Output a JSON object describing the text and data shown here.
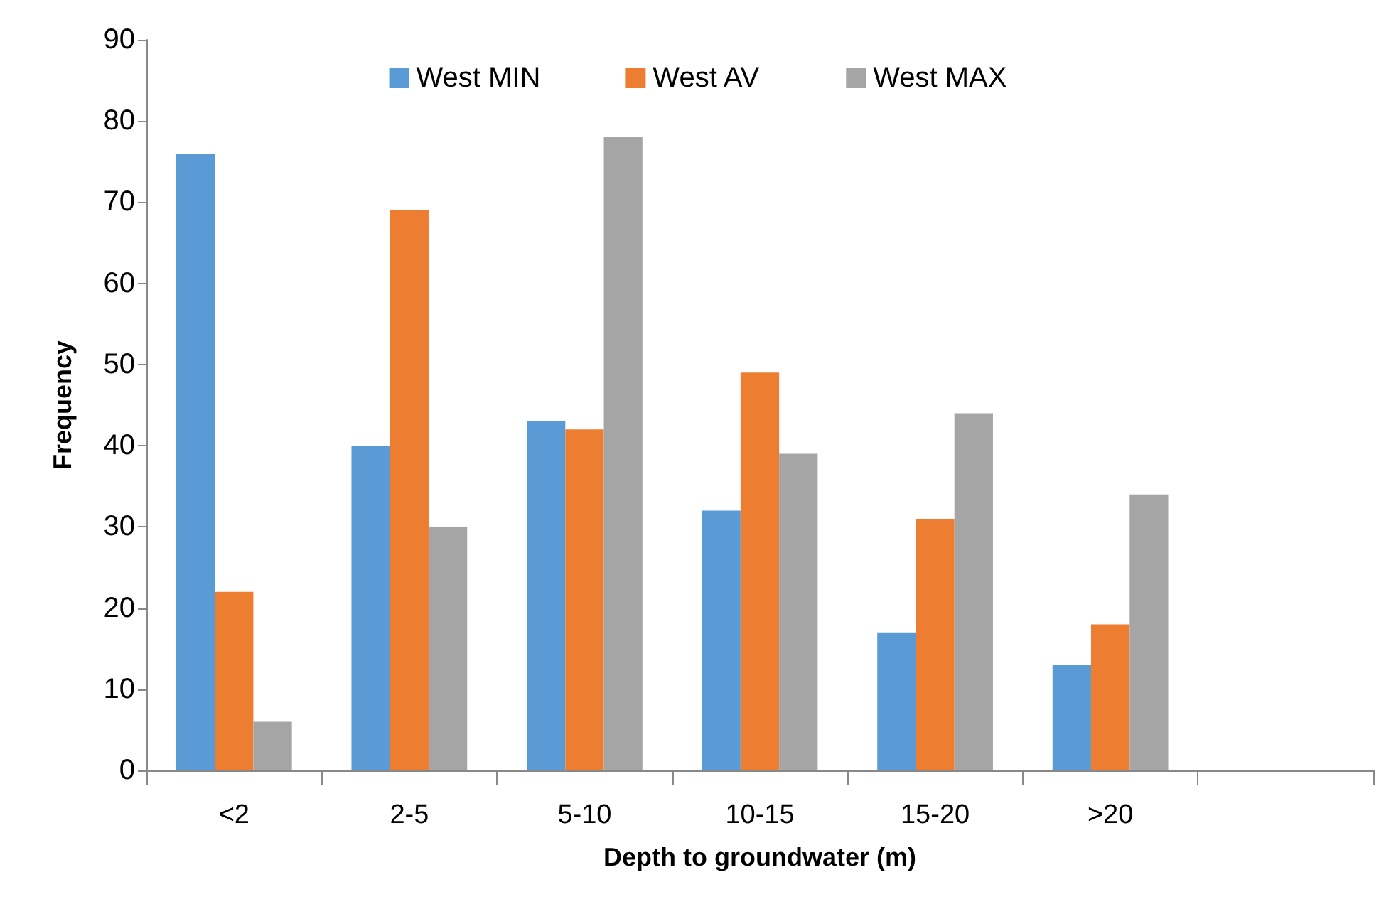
{
  "chart_data": {
    "type": "bar",
    "xlabel": "Depth to groundwater (m)",
    "ylabel": "Frequency",
    "categories": [
      "<2",
      "2-5",
      "5-10",
      "10-15",
      "15-20",
      ">20",
      null
    ],
    "series": [
      {
        "name": "West MIN",
        "color": "#5b9bd5",
        "values": [
          76,
          40,
          43,
          32,
          17,
          13,
          null
        ]
      },
      {
        "name": "West AV",
        "color": "#ed7d31",
        "values": [
          22,
          69,
          42,
          49,
          31,
          18,
          null
        ]
      },
      {
        "name": "West MAX",
        "color": "#a5a5a5",
        "values": [
          6,
          30,
          78,
          39,
          44,
          34,
          null
        ]
      }
    ],
    "ylim": [
      0,
      90
    ],
    "yticks": [
      0,
      10,
      20,
      30,
      40,
      50,
      60,
      70,
      80,
      90
    ],
    "grid": false,
    "legend": "top"
  }
}
